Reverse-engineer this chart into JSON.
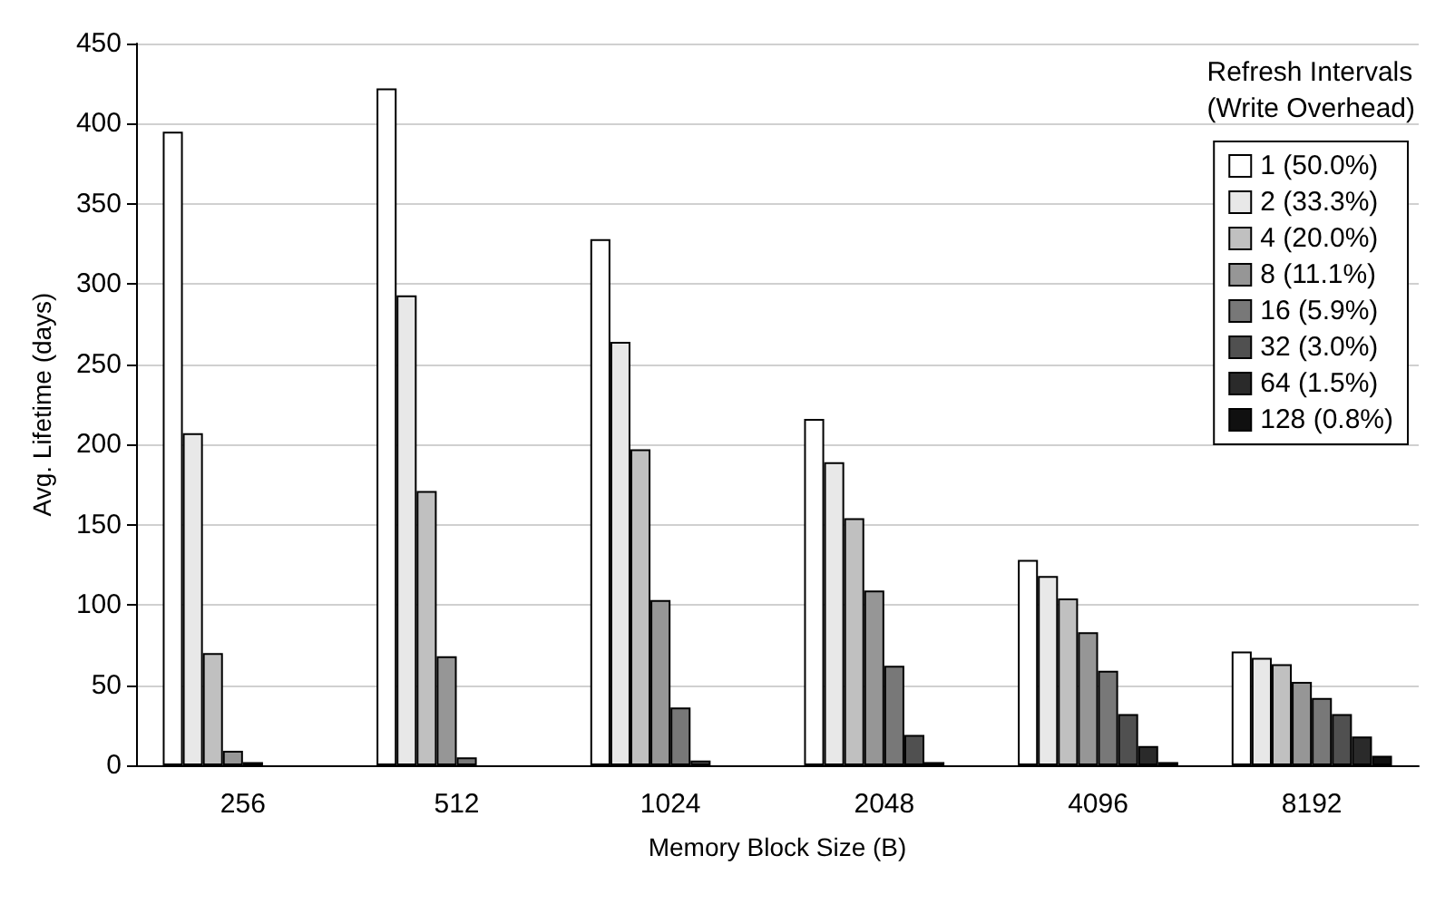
{
  "chart_data": {
    "type": "bar",
    "xlabel": "Memory Block Size (B)",
    "ylabel": "Avg. Lifetime (days)",
    "legend_title": "Refresh Intervals\n(Write Overhead)",
    "categories": [
      "256",
      "512",
      "1024",
      "2048",
      "4096",
      "8192"
    ],
    "series": [
      {
        "name": "1 (50.0%)",
        "color": "#ffffff",
        "values": [
          395,
          422,
          328,
          216,
          128,
          71
        ]
      },
      {
        "name": "2 (33.3%)",
        "color": "#e8e8e8",
        "values": [
          207,
          293,
          264,
          189,
          118,
          67
        ]
      },
      {
        "name": "4 (20.0%)",
        "color": "#c0c0c0",
        "values": [
          70,
          171,
          197,
          154,
          104,
          63
        ]
      },
      {
        "name": "8 (11.1%)",
        "color": "#969696",
        "values": [
          9,
          68,
          103,
          109,
          83,
          52
        ]
      },
      {
        "name": "16 (5.9%)",
        "color": "#787878",
        "values": [
          2,
          5,
          36,
          62,
          59,
          42
        ]
      },
      {
        "name": "32 (3.0%)",
        "color": "#505050",
        "values": [
          null,
          null,
          3,
          19,
          32,
          32
        ]
      },
      {
        "name": "64 (1.5%)",
        "color": "#2a2a2a",
        "values": [
          null,
          null,
          null,
          2,
          12,
          18
        ]
      },
      {
        "name": "128 (0.8%)",
        "color": "#101010",
        "values": [
          null,
          null,
          null,
          null,
          2,
          6
        ]
      }
    ],
    "ylim": [
      0,
      450
    ],
    "yticks": [
      0,
      50,
      100,
      150,
      200,
      250,
      300,
      350,
      400,
      450
    ],
    "grid": "y",
    "legend": "top right"
  }
}
